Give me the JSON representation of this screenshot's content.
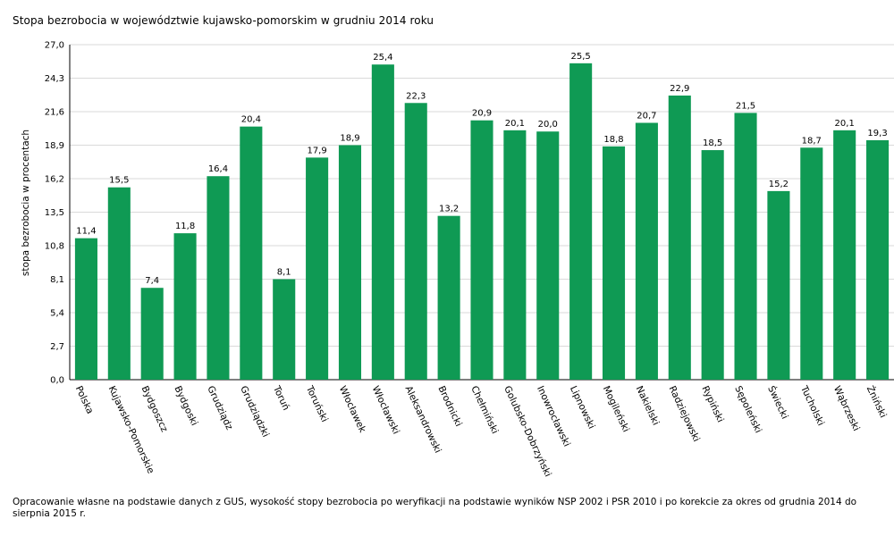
{
  "title": "Stopa bezrobocia w województwie kujawsko-pomorskim w grudniu 2014 roku",
  "footnote": "Opracowanie własne na podstawie danych z GUS, wysokość stopy bezrobocia po weryfikacji na podstawie wyników NSP 2002 i PSR 2010 i po korekcie za okres od grudnia 2014 do sierpnia 2015 r.",
  "colors": {
    "bar": "#0f9a54",
    "grid": "#d9d9d9",
    "axis": "#000000"
  },
  "chart_data": {
    "type": "bar",
    "title": "Stopa bezrobocia w województwie kujawsko-pomorskim w grudniu 2014 roku",
    "xlabel": "",
    "ylabel": "stopa bezrobocia w procentach",
    "ylim": [
      0,
      27
    ],
    "yticks": [
      0,
      2.7,
      5.4,
      8.1,
      10.8,
      13.5,
      16.2,
      18.9,
      21.6,
      24.3,
      27.0
    ],
    "ytick_labels": [
      "0,0",
      "2,7",
      "5,4",
      "8,1",
      "10,8",
      "13,5",
      "16,2",
      "18,9",
      "21,6",
      "24,3",
      "27,0"
    ],
    "grid": true,
    "legend": "none",
    "categories": [
      "Polska",
      "Kujawsko-Pomorskie",
      "Bydgoszcz",
      "Bydgoski",
      "Grudziądz",
      "Grudziądzki",
      "Toruń",
      "Toruński",
      "Włocławek",
      "Włocławski",
      "Aleksandrowski",
      "Brodnicki",
      "Chełmiński",
      "Golubsko-Dobrzyński",
      "Inowrocławski",
      "Lipnowski",
      "Mogileński",
      "Nakielski",
      "Radziejowski",
      "Rypiński",
      "Sępoleński",
      "Świecki",
      "Tucholski",
      "Wąbrzeski",
      "Żniński"
    ],
    "values": [
      11.4,
      15.5,
      7.4,
      11.8,
      16.4,
      20.4,
      8.1,
      17.9,
      18.9,
      25.4,
      22.3,
      13.2,
      20.9,
      20.1,
      20.0,
      25.5,
      18.8,
      20.7,
      22.9,
      18.5,
      21.5,
      15.2,
      18.7,
      20.1,
      19.3
    ],
    "value_labels": [
      "11,4",
      "15,5",
      "7,4",
      "11,8",
      "16,4",
      "20,4",
      "8,1",
      "17,9",
      "18,9",
      "25,4",
      "22,3",
      "13,2",
      "20,9",
      "20,1",
      "20,0",
      "25,5",
      "18,8",
      "20,7",
      "22,9",
      "18,5",
      "21,5",
      "15,2",
      "18,7",
      "20,1",
      "19,3"
    ]
  }
}
